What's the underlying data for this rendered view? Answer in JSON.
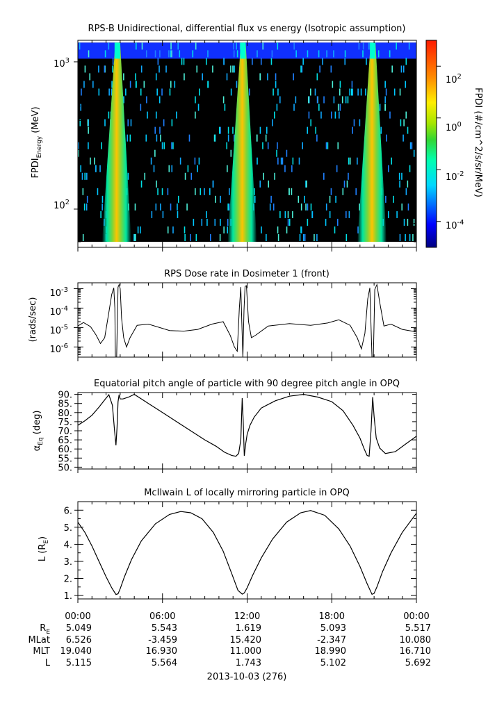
{
  "panels": {
    "spectrogram": {
      "title": "RPS-B  Unidirectional, differential flux vs energy (Isotropic assumption)",
      "ylabel_main": "FPDI",
      "ylabel_sub": "Energy",
      "ylabel_unit": " (MeV)",
      "colorbar_label": "FPDI (#/cm^2/s/sr/MeV)",
      "ytick_labels": [
        {
          "base": "10",
          "exp": "3"
        },
        {
          "base": "10",
          "exp": "2"
        }
      ],
      "cbar_tick_labels": [
        {
          "base": "10",
          "exp": "2"
        },
        {
          "base": "10",
          "exp": "0"
        },
        {
          "base": "10",
          "exp": "-2"
        },
        {
          "base": "10",
          "exp": "-4"
        }
      ]
    },
    "dose": {
      "title": "RPS  Dose rate in Dosimeter 1 (front)",
      "ylabel": "(rads/sec)",
      "ytick_labels": [
        {
          "base": "10",
          "exp": "-3"
        },
        {
          "base": "10",
          "exp": "-4"
        },
        {
          "base": "10",
          "exp": "-5"
        },
        {
          "base": "10",
          "exp": "-6"
        }
      ]
    },
    "pitch": {
      "title": "Equatorial pitch angle of particle with 90 degree pitch angle in OPQ",
      "ylabel_main": "α",
      "ylabel_sub": "Eq",
      "ylabel_unit": " (deg)",
      "ytick_labels": [
        "90.",
        "85.",
        "80.",
        "75.",
        "70.",
        "65.",
        "60.",
        "55.",
        "50."
      ]
    },
    "lshell": {
      "title": "McIlwain L of locally mirroring particle in OPQ",
      "ylabel_main": "L (R",
      "ylabel_sub": "E",
      "ylabel_end": ")",
      "ytick_labels": [
        "6.",
        "5.",
        "4.",
        "3.",
        "2.",
        "1."
      ]
    }
  },
  "footer": {
    "time_labels": [
      "00:00",
      "06:00",
      "12:00",
      "18:00",
      "00:00"
    ],
    "row_labels": {
      "re_main": "R",
      "re_sub": "E",
      "mlat": "MLat",
      "mlt": "MLT",
      "l": "L"
    },
    "re": [
      "5.049",
      "5.543",
      "1.619",
      "5.093",
      "5.517"
    ],
    "mlat": [
      "6.526",
      "-3.459",
      "15.420",
      "-2.347",
      "10.080"
    ],
    "mlt": [
      "19.040",
      "16.930",
      "11.000",
      "18.990",
      "16.710"
    ],
    "l": [
      "5.115",
      "5.564",
      "1.743",
      "5.102",
      "5.692"
    ],
    "date": "2013-10-03 (276)"
  },
  "chart_data": [
    {
      "type": "heatmap",
      "title": "RPS-B  Unidirectional, differential flux vs energy (Isotropic assumption)",
      "xlabel": "",
      "ylabel": "FPDI Energy (MeV)",
      "xlim_hours": [
        0,
        24
      ],
      "ylim_MeV": [
        55,
        1400
      ],
      "yscale": "log",
      "zlabel": "FPDI (#/cm^2/s/sr/MeV)",
      "zlim": [
        1e-05,
        1000
      ],
      "zscale": "log",
      "colormap": "rainbow",
      "high_flux_passes_hours": [
        2.8,
        11.7,
        20.9
      ]
    },
    {
      "type": "line",
      "title": "RPS  Dose rate in Dosimeter 1 (front)",
      "ylabel": "(rads/sec)",
      "yscale": "log",
      "ylim": [
        3e-07,
        0.002
      ],
      "x_hours": [
        0,
        0.4,
        0.9,
        1.3,
        1.6,
        1.9,
        2.2,
        2.4,
        2.55,
        2.62,
        2.66,
        2.75,
        2.85,
        2.92,
        3.0,
        3.1,
        3.25,
        3.45,
        3.7,
        4.2,
        5,
        6.5,
        7.5,
        8.5,
        9.5,
        10.3,
        10.8,
        11.1,
        11.3,
        11.45,
        11.55,
        11.62,
        11.7,
        11.78,
        11.85,
        11.95,
        12.1,
        12.3,
        12.6,
        13.5,
        15,
        16.5,
        17.7,
        18.5,
        19.3,
        19.8,
        20.1,
        20.35,
        20.55,
        20.7,
        20.85,
        20.95,
        21.05,
        21.2,
        21.4,
        21.7,
        22.2,
        23,
        24
      ],
      "values": [
        1.2e-05,
        1.8e-05,
        1.1e-05,
        4e-06,
        1.5e-06,
        3e-06,
        6e-05,
        0.0005,
        0.0011,
        0.0001,
        3e-07,
        3e-07,
        0.0012,
        0.0016,
        0.001,
        3e-05,
        3e-06,
        1e-06,
        3e-06,
        1.3e-05,
        1.5e-05,
        7e-06,
        6.5e-06,
        8e-06,
        1.5e-05,
        2e-05,
        4e-06,
        1e-06,
        6e-07,
        0.0001,
        0.0012,
        2e-05,
        3e-07,
        8e-05,
        0.0013,
        0.0014,
        2e-05,
        3e-06,
        4e-06,
        1.2e-05,
        1.6e-05,
        1.3e-05,
        1.7e-05,
        2.5e-05,
        1.3e-05,
        3e-06,
        8e-07,
        5e-06,
        0.0003,
        0.0011,
        3e-07,
        3e-07,
        0.0009,
        0.0016,
        0.0002,
        1.2e-05,
        1.5e-05,
        8e-06,
        6e-06
      ]
    },
    {
      "type": "line",
      "title": "Equatorial pitch angle of particle with 90 degree pitch angle in OPQ",
      "ylabel": "αEq (deg)",
      "ylim": [
        49,
        91
      ],
      "x_hours": [
        0,
        0.5,
        1.0,
        1.5,
        1.9,
        2.2,
        2.45,
        2.6,
        2.7,
        2.78,
        2.85,
        2.92,
        3.0,
        3.2,
        3.6,
        4.0,
        5.0,
        6.0,
        7.0,
        8.0,
        9.0,
        9.8,
        10.4,
        10.9,
        11.2,
        11.4,
        11.55,
        11.65,
        11.72,
        11.8,
        11.9,
        12.0,
        12.2,
        12.5,
        13.0,
        14.0,
        15.0,
        16.0,
        17.0,
        18.0,
        18.8,
        19.5,
        20.0,
        20.3,
        20.5,
        20.65,
        20.78,
        20.9,
        21.0,
        21.15,
        21.4,
        21.8,
        22.5,
        23.2,
        24
      ],
      "values": [
        73,
        75.5,
        78.5,
        83,
        87,
        89.8,
        84,
        70,
        62,
        72,
        86,
        89.8,
        87.5,
        87.5,
        88.5,
        90,
        85,
        80,
        75,
        70,
        65,
        61.5,
        58.2,
        56.5,
        56,
        57.5,
        65,
        88,
        76,
        56.2,
        63,
        68,
        73,
        77.5,
        82.5,
        86.5,
        89,
        90,
        88.5,
        86,
        81,
        73,
        66,
        60,
        56.5,
        56,
        70,
        88.5,
        78,
        66,
        60.5,
        57.5,
        58.5,
        62.5,
        67
      ]
    },
    {
      "type": "line",
      "title": "McIlwain L of locally mirroring particle in OPQ",
      "ylabel": "L (RE)",
      "ylim": [
        0.8,
        6.5
      ],
      "x_hours": [
        0,
        0.5,
        1.0,
        1.5,
        2.0,
        2.4,
        2.7,
        2.85,
        3.0,
        3.3,
        3.8,
        4.5,
        5.5,
        6.5,
        7.3,
        8.0,
        8.8,
        9.6,
        10.3,
        10.9,
        11.35,
        11.65,
        11.8,
        12.0,
        12.4,
        13.0,
        13.8,
        14.8,
        15.8,
        16.5,
        17.5,
        18.5,
        19.3,
        20.0,
        20.5,
        20.85,
        21.0,
        21.2,
        21.6,
        22.2,
        23.0,
        24
      ],
      "values": [
        5.3,
        4.7,
        3.9,
        3.0,
        2.1,
        1.45,
        1.06,
        1.1,
        1.4,
        2.1,
        3.1,
        4.2,
        5.2,
        5.75,
        5.92,
        5.85,
        5.5,
        4.7,
        3.6,
        2.3,
        1.3,
        1.08,
        1.15,
        1.45,
        2.2,
        3.2,
        4.3,
        5.3,
        5.85,
        5.98,
        5.7,
        4.9,
        3.9,
        2.7,
        1.7,
        1.07,
        1.12,
        1.5,
        2.4,
        3.5,
        4.7,
        5.82
      ]
    }
  ]
}
